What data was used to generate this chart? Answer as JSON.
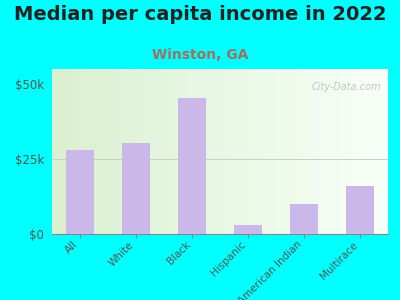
{
  "title": "Median per capita income in 2022",
  "subtitle": "Winston, GA",
  "categories": [
    "All",
    "White",
    "Black",
    "Hispanic",
    "American Indian",
    "Multirace"
  ],
  "values": [
    28000,
    30500,
    45500,
    3000,
    10000,
    16000
  ],
  "bar_color": "#c9b8e8",
  "background_color": "#00FFFF",
  "chart_bg_left": "#daf0d0",
  "chart_bg_right": "#f8fff8",
  "yticks": [
    0,
    25000,
    50000
  ],
  "ytick_labels": [
    "$0",
    "$25k",
    "$50k"
  ],
  "ylim": [
    0,
    55000
  ],
  "title_fontsize": 14,
  "subtitle_fontsize": 10,
  "tick_label_fontsize": 7.5,
  "ytick_fontsize": 8.5,
  "watermark": "City-Data.com",
  "title_color": "#222222",
  "subtitle_color": "#a07060"
}
